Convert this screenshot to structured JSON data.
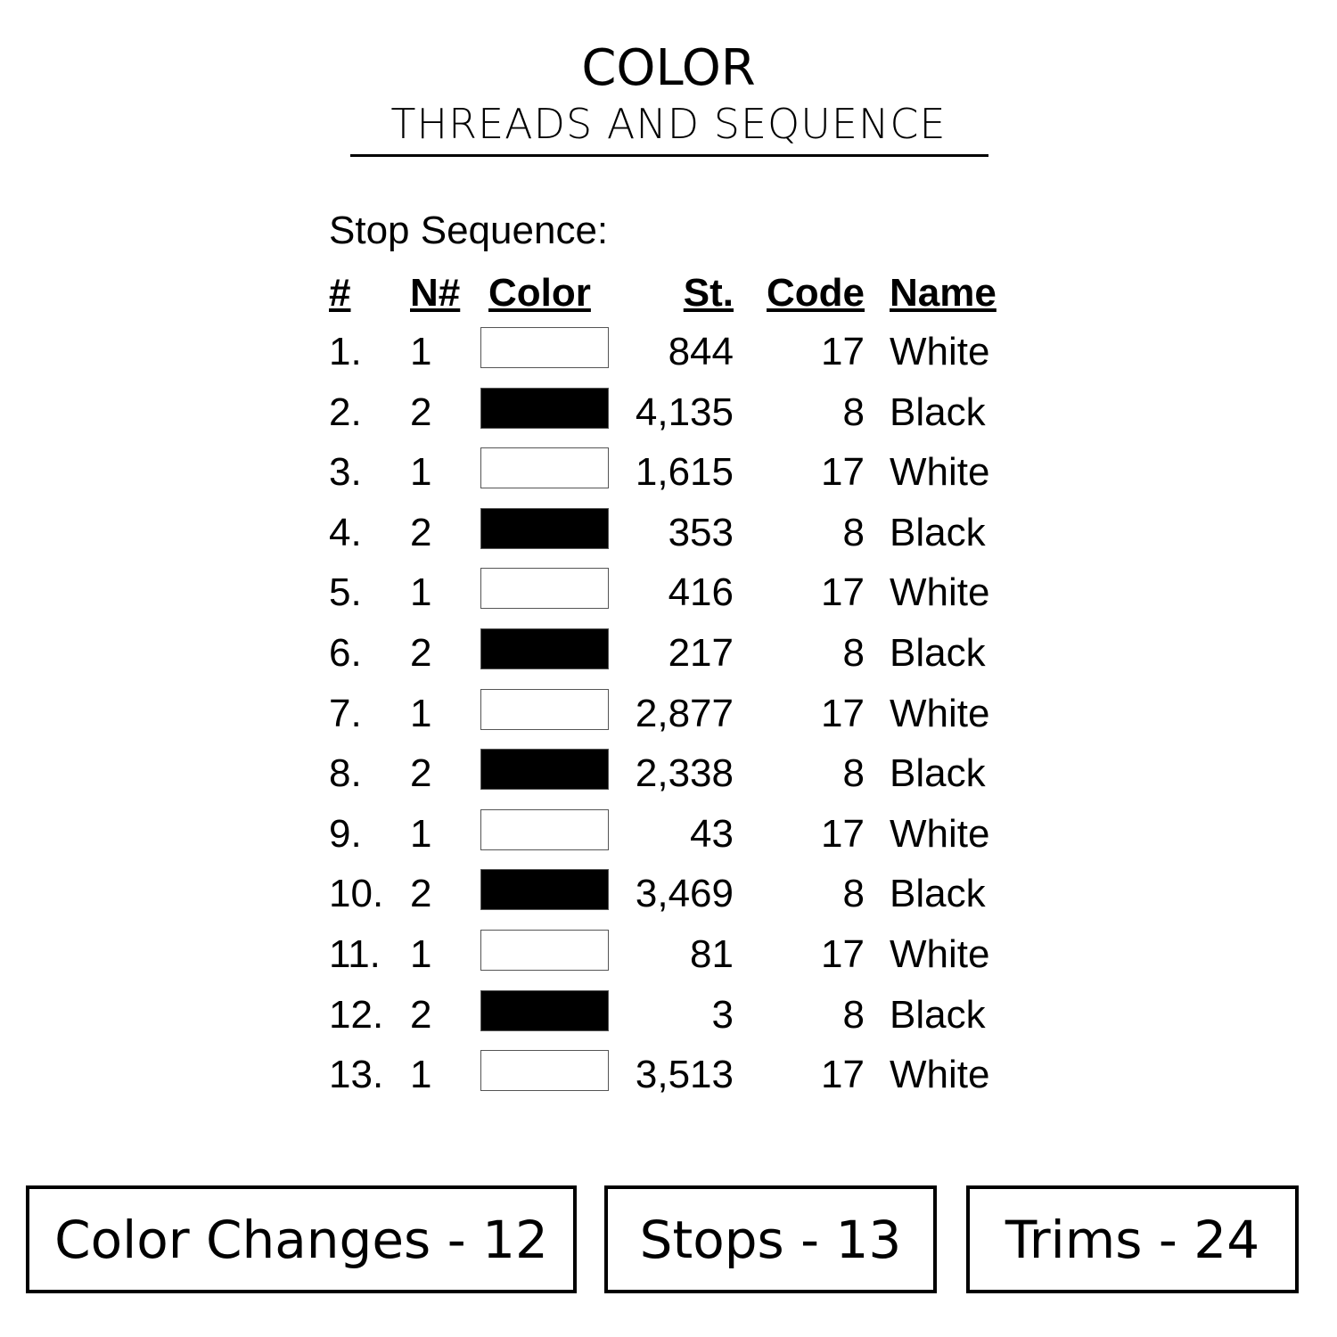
{
  "header": {
    "title": "COLOR",
    "subtitle": "THREADS AND SEQUENCE"
  },
  "stop_sequence": {
    "label": "Stop Sequence:",
    "columns": [
      "#",
      "N#",
      "Color",
      "St.",
      "Code",
      "Name"
    ],
    "rows": [
      {
        "num": "1.",
        "n": "1",
        "color": "#ffffff",
        "st": "844",
        "code": "17",
        "name": "White"
      },
      {
        "num": "2.",
        "n": "2",
        "color": "#000000",
        "st": "4,135",
        "code": "8",
        "name": "Black"
      },
      {
        "num": "3.",
        "n": "1",
        "color": "#ffffff",
        "st": "1,615",
        "code": "17",
        "name": "White"
      },
      {
        "num": "4.",
        "n": "2",
        "color": "#000000",
        "st": "353",
        "code": "8",
        "name": "Black"
      },
      {
        "num": "5.",
        "n": "1",
        "color": "#ffffff",
        "st": "416",
        "code": "17",
        "name": "White"
      },
      {
        "num": "6.",
        "n": "2",
        "color": "#000000",
        "st": "217",
        "code": "8",
        "name": "Black"
      },
      {
        "num": "7.",
        "n": "1",
        "color": "#ffffff",
        "st": "2,877",
        "code": "17",
        "name": "White"
      },
      {
        "num": "8.",
        "n": "2",
        "color": "#000000",
        "st": "2,338",
        "code": "8",
        "name": "Black"
      },
      {
        "num": "9.",
        "n": "1",
        "color": "#ffffff",
        "st": "43",
        "code": "17",
        "name": "White"
      },
      {
        "num": "10.",
        "n": "2",
        "color": "#000000",
        "st": "3,469",
        "code": "8",
        "name": "Black"
      },
      {
        "num": "11.",
        "n": "1",
        "color": "#ffffff",
        "st": "81",
        "code": "17",
        "name": "White"
      },
      {
        "num": "12.",
        "n": "2",
        "color": "#000000",
        "st": "3",
        "code": "8",
        "name": "Black"
      },
      {
        "num": "13.",
        "n": "1",
        "color": "#ffffff",
        "st": "3,513",
        "code": "17",
        "name": "White"
      }
    ]
  },
  "summary": {
    "color_changes": "Color Changes - 12",
    "stops": "Stops - 13",
    "trims": "Trims - 24"
  }
}
